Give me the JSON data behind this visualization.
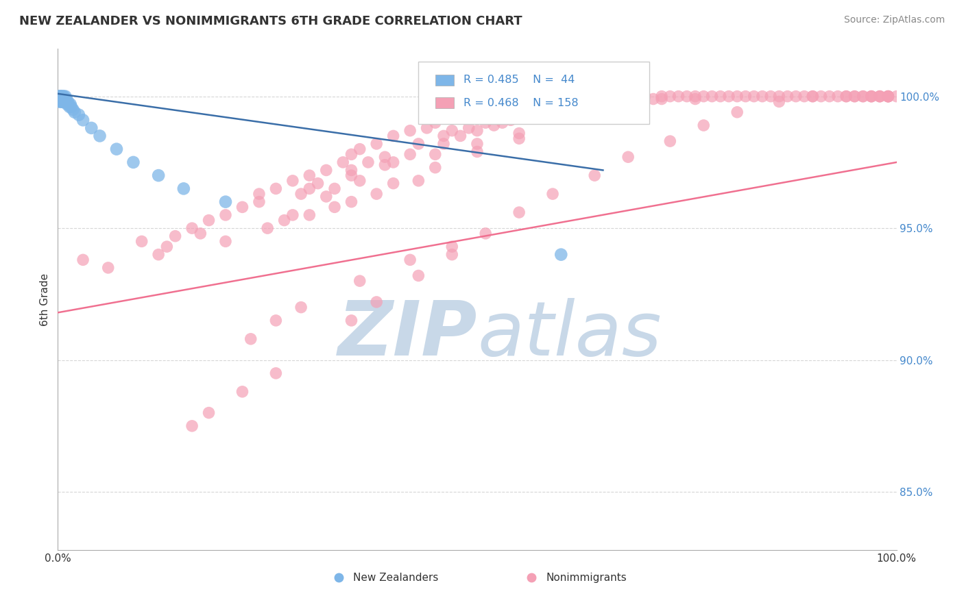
{
  "title": "NEW ZEALANDER VS NONIMMIGRANTS 6TH GRADE CORRELATION CHART",
  "source": "Source: ZipAtlas.com",
  "ylabel": "6th Grade",
  "xmin": 0.0,
  "xmax": 1.0,
  "ymin": 0.828,
  "ymax": 1.018,
  "yticks": [
    0.85,
    0.9,
    0.95,
    1.0
  ],
  "ytick_labels": [
    "85.0%",
    "90.0%",
    "95.0%",
    "100.0%"
  ],
  "xticks": [
    0.0,
    0.25,
    0.5,
    0.75,
    1.0
  ],
  "xtick_labels": [
    "0.0%",
    "",
    "",
    "",
    "100.0%"
  ],
  "color_nz": "#7EB6E8",
  "color_ni": "#F4A0B5",
  "color_nz_line": "#3A6EA8",
  "color_ni_line": "#F07090",
  "background_color": "#ffffff",
  "grid_color": "#cccccc",
  "watermark_color": "#c8d8e8",
  "nz_x": [
    0.001,
    0.001,
    0.002,
    0.002,
    0.002,
    0.003,
    0.003,
    0.003,
    0.003,
    0.004,
    0.004,
    0.004,
    0.005,
    0.005,
    0.005,
    0.006,
    0.006,
    0.006,
    0.007,
    0.007,
    0.008,
    0.008,
    0.009,
    0.009,
    0.01,
    0.01,
    0.011,
    0.012,
    0.013,
    0.014,
    0.015,
    0.016,
    0.018,
    0.02,
    0.025,
    0.03,
    0.04,
    0.05,
    0.07,
    0.09,
    0.12,
    0.15,
    0.2,
    0.6
  ],
  "nz_y": [
    1.0,
    0.999,
    1.0,
    0.999,
    0.998,
    1.0,
    1.0,
    0.999,
    0.998,
    1.0,
    0.999,
    0.998,
    1.0,
    0.999,
    0.998,
    1.0,
    0.999,
    0.998,
    1.0,
    0.999,
    0.999,
    0.998,
    1.0,
    0.999,
    0.999,
    0.998,
    0.997,
    0.998,
    0.997,
    0.996,
    0.997,
    0.996,
    0.995,
    0.994,
    0.993,
    0.991,
    0.988,
    0.985,
    0.98,
    0.975,
    0.97,
    0.965,
    0.96,
    0.94
  ],
  "ni_x": [
    0.03,
    0.06,
    0.1,
    0.12,
    0.13,
    0.14,
    0.16,
    0.17,
    0.18,
    0.2,
    0.22,
    0.24,
    0.24,
    0.26,
    0.28,
    0.29,
    0.3,
    0.31,
    0.32,
    0.33,
    0.34,
    0.35,
    0.35,
    0.36,
    0.37,
    0.38,
    0.39,
    0.4,
    0.42,
    0.43,
    0.44,
    0.45,
    0.46,
    0.47,
    0.48,
    0.49,
    0.5,
    0.51,
    0.52,
    0.53,
    0.54,
    0.55,
    0.56,
    0.57,
    0.58,
    0.59,
    0.6,
    0.61,
    0.62,
    0.63,
    0.63,
    0.64,
    0.65,
    0.66,
    0.67,
    0.68,
    0.69,
    0.7,
    0.71,
    0.72,
    0.73,
    0.74,
    0.75,
    0.76,
    0.76,
    0.77,
    0.78,
    0.79,
    0.8,
    0.81,
    0.82,
    0.83,
    0.84,
    0.85,
    0.86,
    0.87,
    0.88,
    0.89,
    0.9,
    0.91,
    0.92,
    0.93,
    0.94,
    0.94,
    0.95,
    0.95,
    0.96,
    0.96,
    0.97,
    0.97,
    0.97,
    0.98,
    0.98,
    0.98,
    0.99,
    0.99,
    0.99,
    0.99,
    0.99,
    1.0,
    0.3,
    0.35,
    0.4,
    0.45,
    0.5,
    0.55,
    0.3,
    0.35,
    0.4,
    0.45,
    0.5,
    0.55,
    0.27,
    0.33,
    0.38,
    0.43,
    0.2,
    0.25,
    0.28,
    0.32,
    0.36,
    0.39,
    0.42,
    0.46,
    0.5,
    0.53,
    0.56,
    0.6,
    0.48,
    0.52,
    0.57,
    0.62,
    0.67,
    0.72,
    0.23,
    0.26,
    0.29,
    0.36,
    0.42,
    0.47,
    0.16,
    0.18,
    0.22,
    0.26,
    0.35,
    0.38,
    0.43,
    0.47,
    0.51,
    0.55,
    0.59,
    0.64,
    0.68,
    0.73,
    0.77,
    0.81,
    0.86,
    0.9
  ],
  "ni_y": [
    0.938,
    0.935,
    0.945,
    0.94,
    0.943,
    0.947,
    0.95,
    0.948,
    0.953,
    0.955,
    0.958,
    0.963,
    0.96,
    0.965,
    0.968,
    0.963,
    0.97,
    0.967,
    0.972,
    0.965,
    0.975,
    0.978,
    0.972,
    0.98,
    0.975,
    0.982,
    0.977,
    0.985,
    0.987,
    0.982,
    0.988,
    0.99,
    0.985,
    0.987,
    0.992,
    0.988,
    0.994,
    0.99,
    0.993,
    0.996,
    0.991,
    0.997,
    0.994,
    0.999,
    0.996,
    0.993,
    0.998,
    0.995,
    0.999,
    0.996,
    0.993,
    0.999,
    0.997,
    1.0,
    0.998,
    1.0,
    0.999,
    1.0,
    0.999,
    1.0,
    1.0,
    1.0,
    1.0,
    1.0,
    0.999,
    1.0,
    1.0,
    1.0,
    1.0,
    1.0,
    1.0,
    1.0,
    1.0,
    1.0,
    1.0,
    1.0,
    1.0,
    1.0,
    1.0,
    1.0,
    1.0,
    1.0,
    1.0,
    1.0,
    1.0,
    1.0,
    1.0,
    1.0,
    1.0,
    1.0,
    1.0,
    1.0,
    1.0,
    1.0,
    1.0,
    1.0,
    1.0,
    1.0,
    1.0,
    1.0,
    0.965,
    0.97,
    0.975,
    0.978,
    0.982,
    0.986,
    0.955,
    0.96,
    0.967,
    0.973,
    0.979,
    0.984,
    0.953,
    0.958,
    0.963,
    0.968,
    0.945,
    0.95,
    0.955,
    0.962,
    0.968,
    0.974,
    0.978,
    0.982,
    0.987,
    0.99,
    0.993,
    0.997,
    0.985,
    0.989,
    0.992,
    0.995,
    0.997,
    0.999,
    0.908,
    0.915,
    0.92,
    0.93,
    0.938,
    0.943,
    0.875,
    0.88,
    0.888,
    0.895,
    0.915,
    0.922,
    0.932,
    0.94,
    0.948,
    0.956,
    0.963,
    0.97,
    0.977,
    0.983,
    0.989,
    0.994,
    0.998,
    1.0
  ],
  "nz_line_x": [
    0.0,
    0.65
  ],
  "nz_line_y": [
    1.001,
    0.972
  ],
  "ni_line_x": [
    0.0,
    1.0
  ],
  "ni_line_y": [
    0.918,
    0.975
  ]
}
